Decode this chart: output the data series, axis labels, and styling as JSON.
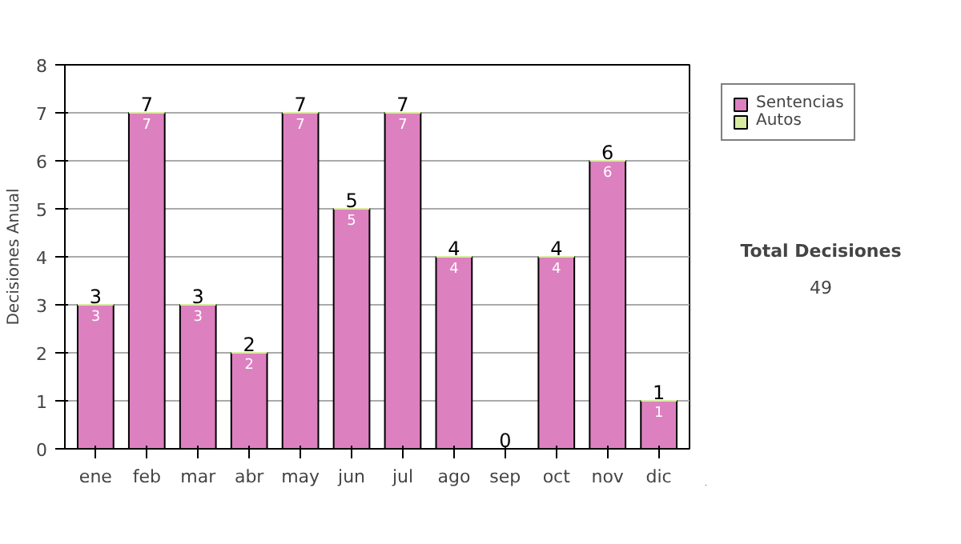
{
  "chart_data": {
    "type": "bar",
    "stacked": true,
    "ylabel": "Decisiones Anual",
    "categories": [
      "ene",
      "feb",
      "mar",
      "abr",
      "may",
      "jun",
      "jul",
      "ago",
      "sep",
      "oct",
      "nov",
      "dic"
    ],
    "series": [
      {
        "name": "Sentencias",
        "color": "#dd80c0",
        "values": [
          3,
          7,
          3,
          2,
          7,
          5,
          7,
          4,
          0,
          4,
          6,
          1
        ],
        "value_labels": [
          "3",
          "7",
          "3",
          "2",
          "7",
          "5",
          "7",
          "4",
          null,
          "4",
          "6",
          "1"
        ]
      },
      {
        "name": "Autos",
        "color": "#d8eca0",
        "values": [
          0,
          0,
          0,
          0,
          0,
          0,
          0,
          0,
          0,
          0,
          0,
          0
        ]
      }
    ],
    "totals": [
      "3",
      "7",
      "3",
      "2",
      "7",
      "5",
      "7",
      "4",
      "0",
      "4",
      "6",
      "1"
    ],
    "ylim": [
      0,
      8
    ],
    "yticks": [
      0,
      1,
      2,
      3,
      4,
      5,
      6,
      7,
      8
    ],
    "grid": "y",
    "legend": "right",
    "annotations": [
      "Total Decisiones",
      "49"
    ]
  }
}
